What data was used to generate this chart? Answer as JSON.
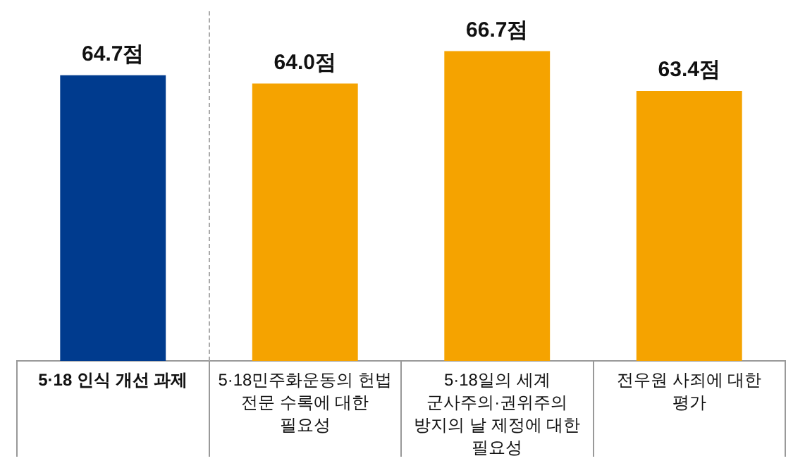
{
  "chart_data": {
    "type": "bar",
    "categories": [
      "5·18 인식 개선 과제",
      "5·18민주화운동의 헌법 전문 수록에 대한 필요성",
      "5·18일의 세계 군사주의·권위주의 방지의 날 제정에 대한 필요성",
      "전우원 사죄에 대한 평가"
    ],
    "values": [
      64.7,
      64.0,
      66.7,
      63.4
    ],
    "colors": [
      "#003b8e",
      "#f5a300",
      "#f5a300",
      "#f5a300"
    ],
    "value_labels": [
      "64.7점",
      "64.0점",
      "66.7점",
      "63.4점"
    ],
    "ylim": [
      41,
      70
    ],
    "legend": false
  }
}
